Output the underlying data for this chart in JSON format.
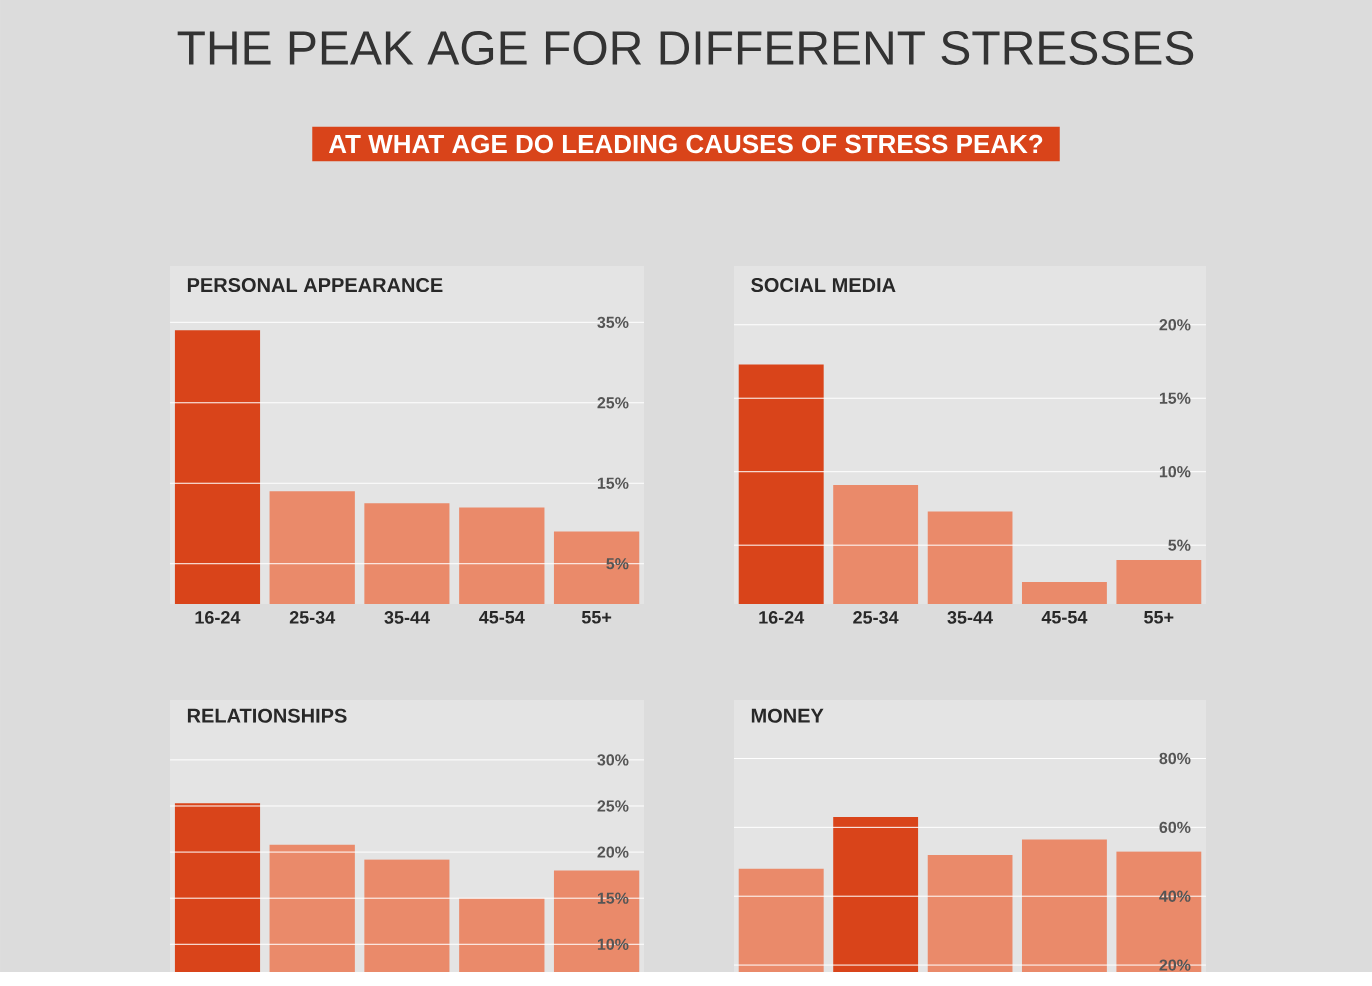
{
  "chart_data": [
    {
      "type": "other",
      "title": "THE PEAK AGE FOR DIFFERENT STRESSES",
      "subtitle": "AT WHAT AGE DO LEADING CAUSES OF STRESS PEAK?"
    },
    {
      "type": "bar",
      "title": "PERSONAL APPEARANCE",
      "categories": [
        "16-24",
        "25-34",
        "35-44",
        "45-54",
        "55+"
      ],
      "values": [
        34,
        14,
        12.5,
        12,
        9
      ],
      "colors": [
        "#d9441a",
        "#ea8a6a",
        "#ea8a6a",
        "#ea8a6a",
        "#ea8a6a"
      ],
      "ylim": [
        0,
        42
      ],
      "yticks": [
        {
          "value": 5,
          "label": "5%"
        },
        {
          "value": 15,
          "label": "15%"
        },
        {
          "value": 25,
          "label": "25%"
        },
        {
          "value": 35,
          "label": "35%"
        }
      ],
      "grid": "y"
    },
    {
      "type": "bar",
      "title": "SOCIAL MEDIA",
      "categories": [
        "16-24",
        "25-34",
        "35-44",
        "45-54",
        "55+"
      ],
      "values": [
        17.3,
        9.1,
        7.3,
        2.5,
        4
      ],
      "colors": [
        "#d9441a",
        "#ea8a6a",
        "#ea8a6a",
        "#ea8a6a",
        "#ea8a6a"
      ],
      "ylim": [
        1,
        24
      ],
      "yticks": [
        {
          "value": 5,
          "label": "5%"
        },
        {
          "value": 10,
          "label": "10%"
        },
        {
          "value": 15,
          "label": "15%"
        },
        {
          "value": 20,
          "label": "20%"
        }
      ],
      "grid": "y"
    },
    {
      "type": "bar",
      "title": "RELATIONSHIPS",
      "categories": [
        null,
        null,
        null,
        null,
        null
      ],
      "values": [
        25.3,
        20.8,
        19.2,
        15,
        18
      ],
      "colors": [
        "#d9441a",
        "#ea8a6a",
        "#ea8a6a",
        "#ea8a6a",
        "#ea8a6a"
      ],
      "ylim": [
        7,
        36.5
      ],
      "yticks": [
        {
          "value": 10,
          "label": "10%"
        },
        {
          "value": 15,
          "label": "15%"
        },
        {
          "value": 20,
          "label": "20%"
        },
        {
          "value": 25,
          "label": "25%"
        },
        {
          "value": 30,
          "label": "30%"
        }
      ],
      "grid": "y",
      "tick_labels": "y"
    },
    {
      "type": "bar",
      "title": "MONEY",
      "categories": [
        null,
        null,
        null,
        null,
        null
      ],
      "values": [
        48,
        63,
        52,
        56.5,
        53
      ],
      "colors": [
        "#ea8a6a",
        "#d9441a",
        "#ea8a6a",
        "#ea8a6a",
        "#ea8a6a"
      ],
      "ylim": [
        18,
        97
      ],
      "yticks": [
        {
          "value": 20,
          "label": "20%"
        },
        {
          "value": 40,
          "label": "40%"
        },
        {
          "value": 60,
          "label": "60%"
        },
        {
          "value": 80,
          "label": "80%"
        }
      ],
      "grid": "y",
      "tick_labels": "y"
    }
  ]
}
